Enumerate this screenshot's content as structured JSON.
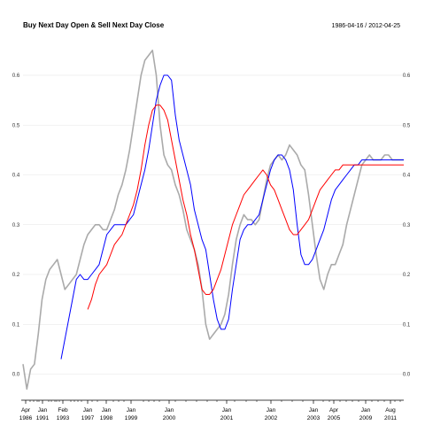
{
  "chart_data": {
    "type": "line",
    "title": "Buy Next Day Open & Sell Next Day Close",
    "date_range": "1986-04-16 / 2012-04-25",
    "ylim": [
      -0.04,
      0.68
    ],
    "y_ticks": [
      "0.0",
      "0.1",
      "0.2",
      "0.3",
      "0.4",
      "0.5",
      "0.6"
    ],
    "grid": "horizontal",
    "x_ticks": [
      {
        "top": "Apr",
        "bottom": "1986"
      },
      {
        "top": "Jan",
        "bottom": "1991"
      },
      {
        "top": "Feb",
        "bottom": "1993"
      },
      {
        "top": "Jan",
        "bottom": "1997"
      },
      {
        "top": "Jan",
        "bottom": "1998"
      },
      {
        "top": "Jan",
        "bottom": "1999"
      },
      {
        "top": "Jan",
        "bottom": "2000"
      },
      {
        "top": "Jan",
        "bottom": "2001"
      },
      {
        "top": "Jan",
        "bottom": "2002"
      },
      {
        "top": "Jan",
        "bottom": "2003"
      },
      {
        "top": "Apr",
        "bottom": "2005"
      },
      {
        "top": "Jan",
        "bottom": "2009"
      },
      {
        "top": "Aug",
        "bottom": "2011"
      }
    ],
    "series": [
      {
        "color": "#aaaaaa",
        "x": [
          0,
          1,
          2,
          3,
          4,
          5,
          6,
          7,
          8,
          9,
          10,
          11,
          12,
          13,
          14,
          15,
          16,
          17,
          18,
          19,
          20,
          21,
          22,
          23,
          24,
          25,
          26,
          27,
          28,
          29,
          30,
          31,
          32,
          33,
          34,
          35,
          36,
          37,
          38,
          39,
          40,
          41,
          42,
          43,
          44,
          45,
          46,
          47,
          48,
          49,
          50,
          51,
          52,
          53,
          54,
          55,
          56,
          57,
          58,
          59,
          60,
          61,
          62,
          63,
          64,
          65,
          66,
          67,
          68,
          69,
          70,
          71,
          72,
          73,
          74,
          75,
          76,
          77,
          78,
          79,
          80,
          81,
          82,
          83,
          84,
          85,
          86,
          87,
          88,
          89,
          90,
          91,
          92,
          93,
          94,
          95,
          96,
          97,
          98,
          99,
          100
        ],
        "values": [
          0.02,
          -0.03,
          0.01,
          0.02,
          0.08,
          0.15,
          0.19,
          0.21,
          0.22,
          0.23,
          0.2,
          0.17,
          0.18,
          0.19,
          0.2,
          0.23,
          0.26,
          0.28,
          0.29,
          0.3,
          0.3,
          0.29,
          0.29,
          0.31,
          0.33,
          0.36,
          0.38,
          0.41,
          0.45,
          0.5,
          0.55,
          0.6,
          0.63,
          0.64,
          0.65,
          0.6,
          0.5,
          0.44,
          0.42,
          0.41,
          0.38,
          0.36,
          0.33,
          0.29,
          0.27,
          0.25,
          0.22,
          0.17,
          0.1,
          0.07,
          0.08,
          0.09,
          0.1,
          0.12,
          0.16,
          0.22,
          0.27,
          0.3,
          0.32,
          0.31,
          0.31,
          0.3,
          0.31,
          0.35,
          0.39,
          0.42,
          0.43,
          0.44,
          0.43,
          0.44,
          0.46,
          0.45,
          0.44,
          0.42,
          0.41,
          0.36,
          0.3,
          0.24,
          0.19,
          0.17,
          0.2,
          0.22,
          0.22,
          0.24,
          0.26,
          0.3,
          0.33,
          0.36,
          0.39,
          0.42,
          0.43,
          0.44,
          0.43,
          0.43,
          0.43,
          0.44,
          0.44,
          0.43,
          0.43,
          0.43,
          0.43
        ]
      },
      {
        "color": "#0000ff",
        "x": [
          10,
          11,
          12,
          13,
          14,
          15,
          16,
          17,
          18,
          19,
          20,
          21,
          22,
          23,
          24,
          25,
          26,
          27,
          28,
          29,
          30,
          31,
          32,
          33,
          34,
          35,
          36,
          37,
          38,
          39,
          40,
          41,
          42,
          43,
          44,
          45,
          46,
          47,
          48,
          49,
          50,
          51,
          52,
          53,
          54,
          55,
          56,
          57,
          58,
          59,
          60,
          61,
          62,
          63,
          64,
          65,
          66,
          67,
          68,
          69,
          70,
          71,
          72,
          73,
          74,
          75,
          76,
          77,
          78,
          79,
          80,
          81,
          82,
          83,
          84,
          85,
          86,
          87,
          88,
          89,
          90,
          91,
          92,
          93,
          94,
          95,
          96,
          97,
          98,
          99,
          100
        ],
        "values": [
          0.03,
          0.07,
          0.11,
          0.15,
          0.19,
          0.2,
          0.19,
          0.19,
          0.2,
          0.21,
          0.22,
          0.25,
          0.28,
          0.29,
          0.3,
          0.3,
          0.3,
          0.3,
          0.31,
          0.32,
          0.35,
          0.38,
          0.41,
          0.45,
          0.5,
          0.55,
          0.58,
          0.6,
          0.6,
          0.59,
          0.52,
          0.47,
          0.44,
          0.41,
          0.38,
          0.33,
          0.3,
          0.27,
          0.25,
          0.2,
          0.15,
          0.11,
          0.09,
          0.09,
          0.11,
          0.17,
          0.22,
          0.27,
          0.29,
          0.3,
          0.3,
          0.31,
          0.32,
          0.35,
          0.38,
          0.41,
          0.43,
          0.44,
          0.44,
          0.43,
          0.41,
          0.37,
          0.3,
          0.24,
          0.22,
          0.22,
          0.23,
          0.25,
          0.27,
          0.29,
          0.32,
          0.35,
          0.37,
          0.38,
          0.39,
          0.4,
          0.41,
          0.42,
          0.42,
          0.43,
          0.43,
          0.43,
          0.43,
          0.43,
          0.43,
          0.43,
          0.43,
          0.43,
          0.43,
          0.43,
          0.43
        ]
      },
      {
        "color": "#ff0000",
        "x": [
          17,
          18,
          19,
          20,
          21,
          22,
          23,
          24,
          25,
          26,
          27,
          28,
          29,
          30,
          31,
          32,
          33,
          34,
          35,
          36,
          37,
          38,
          39,
          40,
          41,
          42,
          43,
          44,
          45,
          46,
          47,
          48,
          49,
          50,
          51,
          52,
          53,
          54,
          55,
          56,
          57,
          58,
          59,
          60,
          61,
          62,
          63,
          64,
          65,
          66,
          67,
          68,
          69,
          70,
          71,
          72,
          73,
          74,
          75,
          76,
          77,
          78,
          79,
          80,
          81,
          82,
          83,
          84,
          85,
          86,
          87,
          88,
          89,
          90,
          91,
          92,
          93,
          94,
          95,
          96,
          97,
          98,
          99,
          100
        ],
        "values": [
          0.13,
          0.15,
          0.18,
          0.2,
          0.21,
          0.22,
          0.24,
          0.26,
          0.27,
          0.28,
          0.3,
          0.32,
          0.34,
          0.37,
          0.41,
          0.46,
          0.5,
          0.53,
          0.54,
          0.54,
          0.53,
          0.51,
          0.47,
          0.43,
          0.39,
          0.35,
          0.32,
          0.28,
          0.25,
          0.21,
          0.17,
          0.16,
          0.16,
          0.17,
          0.19,
          0.21,
          0.24,
          0.27,
          0.3,
          0.32,
          0.34,
          0.36,
          0.37,
          0.38,
          0.39,
          0.4,
          0.41,
          0.4,
          0.38,
          0.37,
          0.35,
          0.33,
          0.31,
          0.29,
          0.28,
          0.28,
          0.29,
          0.3,
          0.31,
          0.33,
          0.35,
          0.37,
          0.38,
          0.39,
          0.4,
          0.41,
          0.41,
          0.42,
          0.42,
          0.42,
          0.42,
          0.42,
          0.42,
          0.42,
          0.42,
          0.42,
          0.42,
          0.42,
          0.42,
          0.42,
          0.42,
          0.42,
          0.42,
          0.42
        ]
      }
    ]
  }
}
